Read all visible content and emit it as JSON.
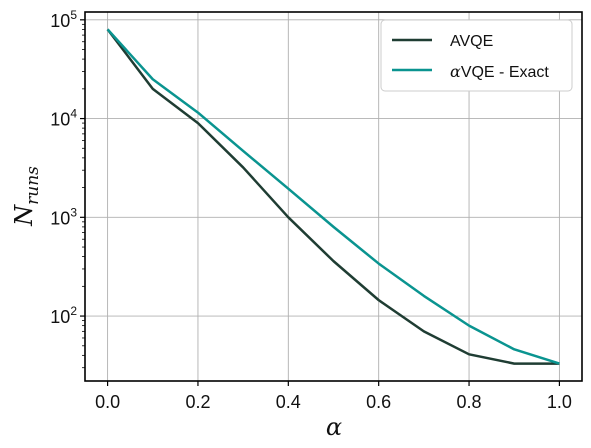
{
  "chart_data": {
    "type": "line",
    "title": "",
    "xlabel": "α",
    "ylabel_main": "N",
    "ylabel_sub": "runs",
    "xlim": [
      -0.05,
      1.05
    ],
    "ylim": [
      22,
      120000
    ],
    "yscale": "log",
    "grid": true,
    "legend_position": "top-right",
    "x_ticks": [
      0.0,
      0.2,
      0.4,
      0.6,
      0.8,
      1.0
    ],
    "x_tick_labels": [
      "0.0",
      "0.2",
      "0.4",
      "0.6",
      "0.8",
      "1.0"
    ],
    "y_ticks": [
      100,
      1000,
      10000,
      100000
    ],
    "y_tick_labels": [
      {
        "base": "10",
        "exp": "2"
      },
      {
        "base": "10",
        "exp": "3"
      },
      {
        "base": "10",
        "exp": "4"
      },
      {
        "base": "10",
        "exp": "5"
      }
    ],
    "x": [
      0.0,
      0.1,
      0.2,
      0.3,
      0.4,
      0.5,
      0.6,
      0.7,
      0.8,
      0.9,
      1.0
    ],
    "series": [
      {
        "name": "AVQE",
        "color": "#1f3d33",
        "values": [
          80000,
          20000,
          9000,
          3200,
          1000,
          360,
          145,
          70,
          41,
          33,
          33
        ]
      },
      {
        "name": "VQE - Exact",
        "name_prefix": "α",
        "color": "#0a9490",
        "values": [
          80000,
          25000,
          11500,
          4700,
          1950,
          800,
          340,
          160,
          80,
          46,
          33
        ]
      }
    ]
  }
}
